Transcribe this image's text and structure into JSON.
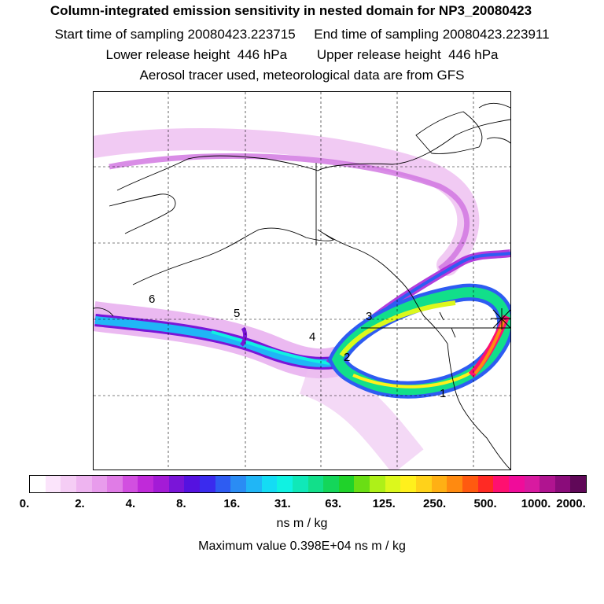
{
  "header": {
    "title": "Column-integrated emission sensitivity in nested domain for NP3_20080423",
    "sampling": "Start time of sampling 20080423.223715     End time of sampling 20080423.223911",
    "release": "Lower release height  446 hPa        Upper release height  446 hPa",
    "info": "Aerosol tracer used, meteorological data are from GFS"
  },
  "map": {
    "point_labels": [
      "6",
      "5",
      "4",
      "3",
      "2",
      "1"
    ]
  },
  "colorbar": {
    "colors": [
      "#ffffff",
      "#fbe4fb",
      "#f5cdf5",
      "#eeb4f0",
      "#e89cec",
      "#e07ce6",
      "#d24fe0",
      "#c02ad9",
      "#a41bd6",
      "#7a15d8",
      "#5512e0",
      "#3a2bee",
      "#2e5cf2",
      "#2a8cf4",
      "#20b6f6",
      "#14dcf4",
      "#10f2e2",
      "#10e8b8",
      "#12df8a",
      "#14d65a",
      "#20d22a",
      "#6ade14",
      "#aef018",
      "#dcf81c",
      "#fff01c",
      "#ffd21a",
      "#ffb014",
      "#ff8a10",
      "#ff5a10",
      "#ff2a24",
      "#ff1070",
      "#f00c9a",
      "#d81aa0",
      "#b01490",
      "#8a0c7a",
      "#600858"
    ],
    "tick_labels": [
      "0.",
      "2.",
      "4.",
      "8.",
      "16.",
      "31.",
      "63.",
      "125.",
      "250.",
      "500.",
      "1000.",
      "2000."
    ],
    "units": "ns m / kg"
  },
  "footer": {
    "max_value": "Maximum value  0.398E+04 ns m / kg"
  }
}
